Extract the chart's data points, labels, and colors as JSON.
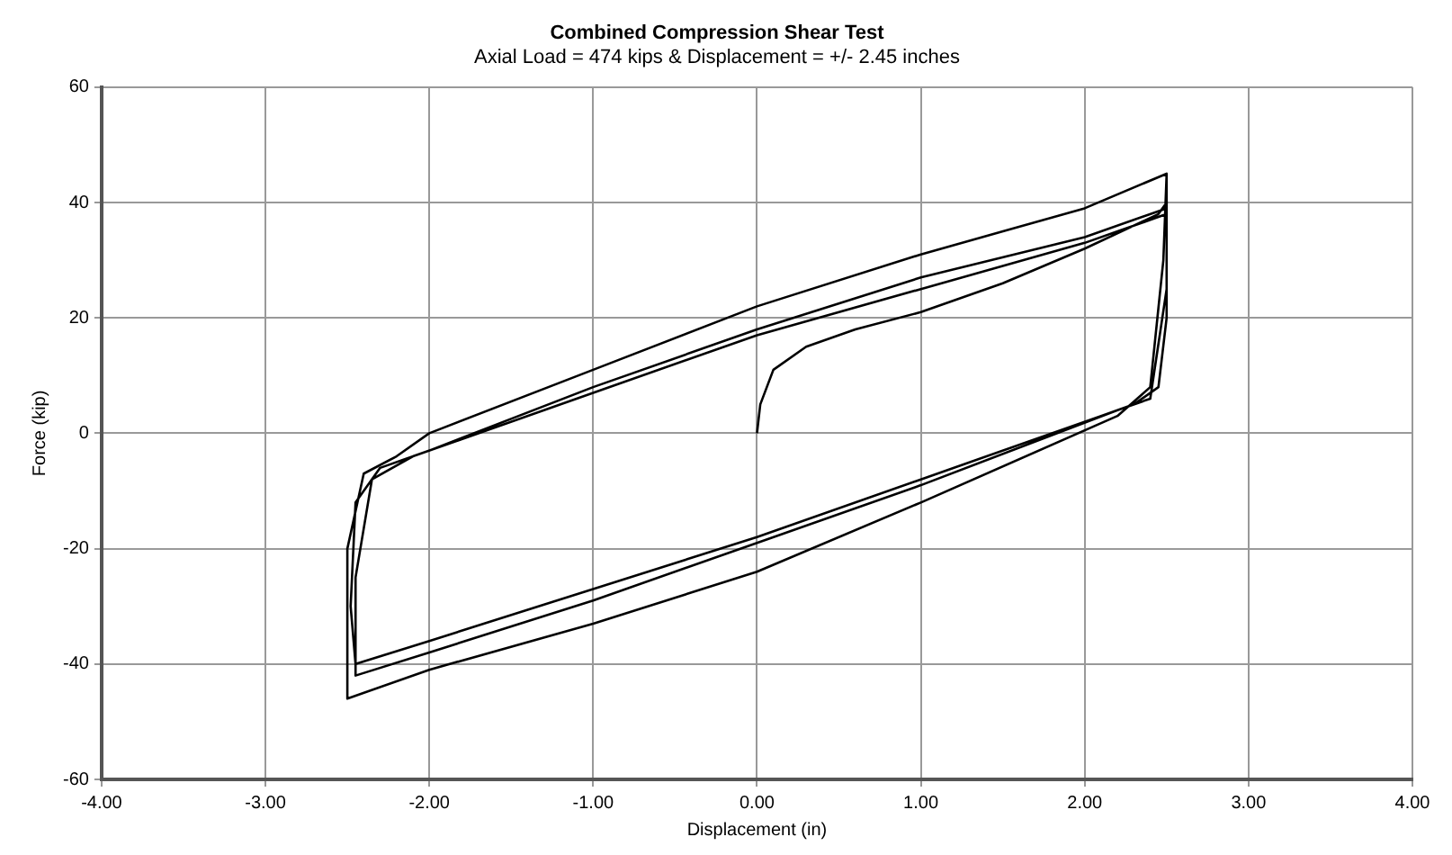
{
  "chart_data": {
    "type": "line",
    "title": "Combined Compression Shear Test",
    "subtitle": "Axial Load = 474 kips & Displacement = +/- 2.45 inches",
    "xlabel": "Displacement (in)",
    "ylabel": "Force (kip)",
    "series": [
      {
        "color": "#000000",
        "x": [
          0,
          0.02,
          0.1,
          0.3,
          0.6,
          1.0,
          1.5,
          2.0,
          2.45,
          2.5,
          2.5,
          2.45,
          2.3,
          2.1,
          1.0,
          0,
          -1.0,
          -2.0,
          -2.45,
          -2.48,
          -2.45,
          -2.3,
          -2.0,
          -1.0,
          0,
          1.0,
          2.0,
          2.5,
          2.5,
          2.48,
          2.4,
          2.2,
          1.0,
          0,
          -1.0,
          -2.0,
          -2.5,
          -2.5,
          -2.4,
          -2.2,
          -2.0,
          -1.0,
          0,
          1.0,
          2.0,
          2.5,
          2.5,
          2.4,
          2.2,
          1.0,
          0,
          -1.0,
          -2.0,
          -2.45,
          -2.45,
          -2.35,
          -2.1,
          -1.0,
          0,
          1.0,
          2.0,
          2.5
        ],
        "values": [
          0,
          5,
          11,
          15,
          18,
          21,
          26,
          32,
          38,
          40,
          20,
          8,
          5,
          3,
          -8,
          -18,
          -27,
          -36,
          -40,
          -30,
          -12,
          -6,
          -3,
          8,
          18,
          27,
          34,
          39,
          45,
          30,
          8,
          3,
          -12,
          -24,
          -33,
          -41,
          -46,
          -20,
          -7,
          -4,
          0,
          11,
          22,
          31,
          39,
          45,
          25,
          6,
          4,
          -9,
          -19,
          -29,
          -38,
          -42,
          -25,
          -8,
          -4,
          7,
          17,
          25,
          33,
          38
        ]
      }
    ],
    "xlim": [
      -4,
      4
    ],
    "xticks": [
      {
        "value": -4,
        "label": "-4.00"
      },
      {
        "value": -3,
        "label": "-3.00"
      },
      {
        "value": -2,
        "label": "-2.00"
      },
      {
        "value": -1,
        "label": "-1.00"
      },
      {
        "value": 0,
        "label": "0.00"
      },
      {
        "value": 1,
        "label": "1.00"
      },
      {
        "value": 2,
        "label": "2.00"
      },
      {
        "value": 3,
        "label": "3.00"
      },
      {
        "value": 4,
        "label": "4.00"
      }
    ],
    "ylim": [
      -60,
      60
    ],
    "yticks": [
      -60,
      -40,
      -20,
      0,
      20,
      40,
      60
    ],
    "grid": true,
    "legend": false,
    "marker": "none",
    "line_style": "solid"
  }
}
